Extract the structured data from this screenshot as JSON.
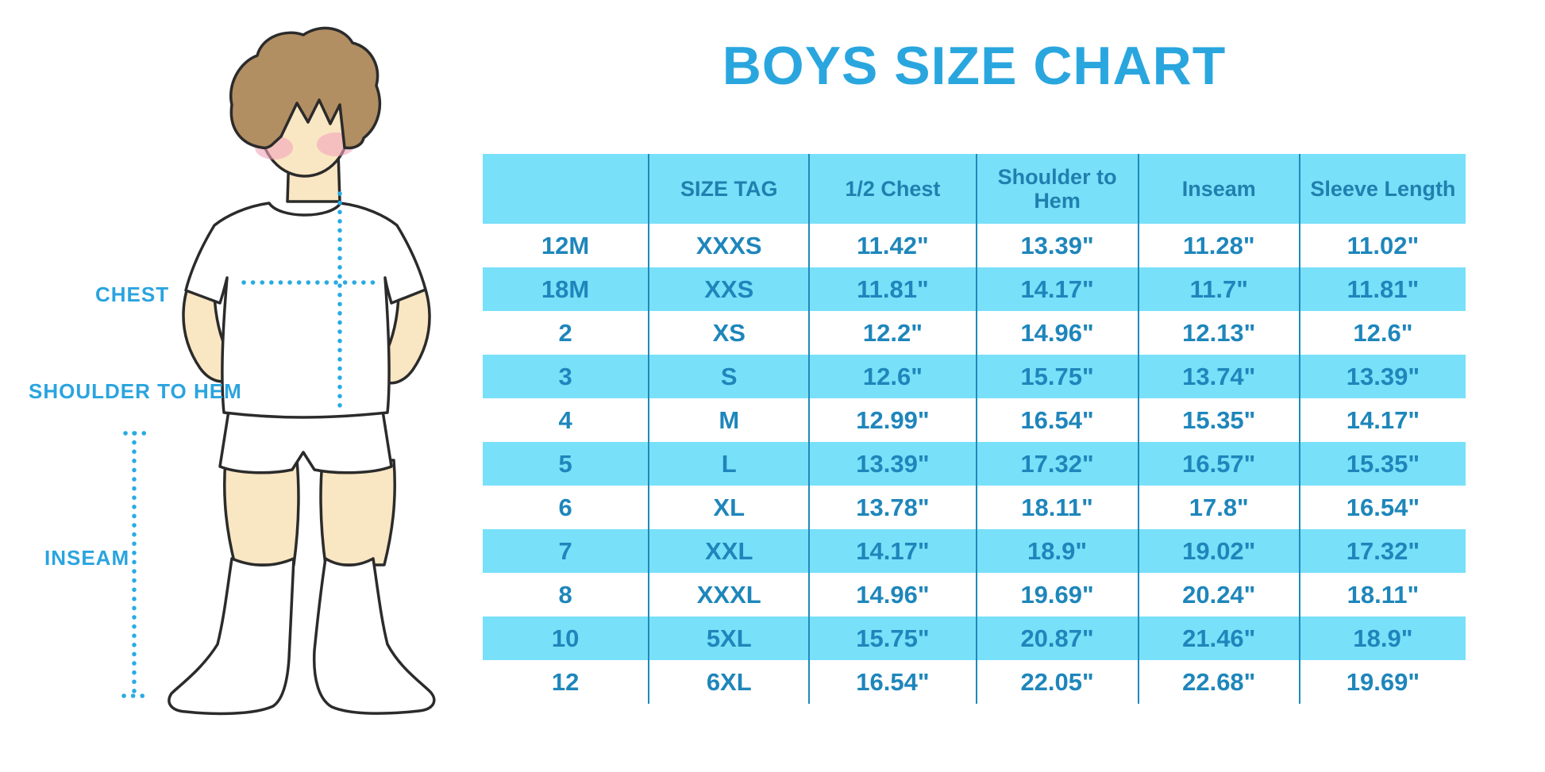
{
  "title": "BOYS SIZE CHART",
  "colors": {
    "title_blue": "#2AA6DF",
    "band_blue": "#79E0F9",
    "cell_text_blue": "#1E86BB",
    "divider_blue": "#1E8ABB",
    "label_blue": "#2AA4DF",
    "dotted_line_blue": "#29ABE2",
    "skin": "#F9E6C2",
    "hair_brown": "#B28E63",
    "cheek_pink": "#F0A5BA",
    "outline": "#2B2B2B"
  },
  "illustration": {
    "labels": {
      "chest": "CHEST",
      "shoulder_to_hem": "SHOULDER TO HEM",
      "inseam": "INSEAM"
    }
  },
  "chart_data": {
    "type": "table",
    "title": "BOYS SIZE CHART",
    "columns": [
      "",
      "SIZE TAG",
      "1/2 Chest",
      "Shoulder to Hem",
      "Inseam",
      "Sleeve Length"
    ],
    "rows": [
      [
        "12M",
        "XXXS",
        "11.42\"",
        "13.39\"",
        "11.28\"",
        "11.02\""
      ],
      [
        "18M",
        "XXS",
        "11.81\"",
        "14.17\"",
        "11.7\"",
        "11.81\""
      ],
      [
        "2",
        "XS",
        "12.2\"",
        "14.96\"",
        "12.13\"",
        "12.6\""
      ],
      [
        "3",
        "S",
        "12.6\"",
        "15.75\"",
        "13.74\"",
        "13.39\""
      ],
      [
        "4",
        "M",
        "12.99\"",
        "16.54\"",
        "15.35\"",
        "14.17\""
      ],
      [
        "5",
        "L",
        "13.39\"",
        "17.32\"",
        "16.57\"",
        "15.35\""
      ],
      [
        "6",
        "XL",
        "13.78\"",
        "18.11\"",
        "17.8\"",
        "16.54\""
      ],
      [
        "7",
        "XXL",
        "14.17\"",
        "18.9\"",
        "19.02\"",
        "17.32\""
      ],
      [
        "8",
        "XXXL",
        "14.96\"",
        "19.69\"",
        "20.24\"",
        "18.11\""
      ],
      [
        "10",
        "5XL",
        "15.75\"",
        "20.87\"",
        "21.46\"",
        "18.9\""
      ],
      [
        "12",
        "6XL",
        "16.54\"",
        "22.05\"",
        "22.68\"",
        "19.69\""
      ]
    ]
  }
}
